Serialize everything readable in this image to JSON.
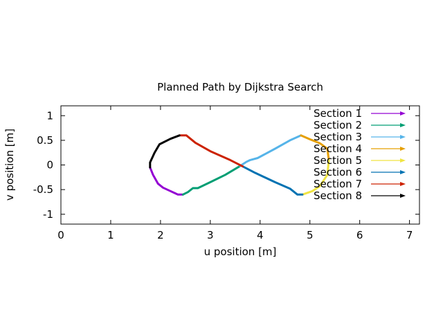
{
  "chart_data": {
    "type": "line",
    "title": "Planned Path by Dijkstra Search",
    "xlabel": "u position [m]",
    "ylabel": "v position [m]",
    "xlim": [
      0,
      7.2
    ],
    "ylim": [
      -1.2,
      1.2
    ],
    "xticks": [
      "0",
      "1",
      "2",
      "3",
      "4",
      "5",
      "6",
      "7"
    ],
    "xtick_values": [
      0,
      1,
      2,
      3,
      4,
      5,
      6,
      7
    ],
    "yticks": [
      "1",
      "0.5",
      "0",
      "-0.5",
      "-1"
    ],
    "ytick_values": [
      1,
      0.5,
      0,
      -0.5,
      -1
    ],
    "grid": false,
    "legend_position": "top-right",
    "series": [
      {
        "name": "Section 1",
        "color": "#9400d3",
        "points": [
          [
            1.79,
            -0.05
          ],
          [
            1.85,
            -0.2
          ],
          [
            1.95,
            -0.38
          ],
          [
            2.05,
            -0.46
          ],
          [
            2.2,
            -0.53
          ],
          [
            2.35,
            -0.6
          ],
          [
            2.45,
            -0.6
          ]
        ]
      },
      {
        "name": "Section 2",
        "color": "#009e73",
        "points": [
          [
            2.45,
            -0.6
          ],
          [
            2.55,
            -0.55
          ],
          [
            2.65,
            -0.47
          ],
          [
            2.75,
            -0.47
          ],
          [
            3.0,
            -0.35
          ],
          [
            3.3,
            -0.2
          ],
          [
            3.6,
            -0.02
          ]
        ]
      },
      {
        "name": "Section 3",
        "color": "#56b4e9",
        "points": [
          [
            3.6,
            -0.02
          ],
          [
            3.72,
            0.06
          ],
          [
            3.8,
            0.1
          ],
          [
            3.95,
            0.14
          ],
          [
            4.3,
            0.33
          ],
          [
            4.6,
            0.5
          ],
          [
            4.82,
            0.6
          ]
        ]
      },
      {
        "name": "Section 4",
        "color": "#e69f00",
        "points": [
          [
            4.82,
            0.6
          ],
          [
            5.0,
            0.52
          ],
          [
            5.2,
            0.44
          ],
          [
            5.35,
            0.33
          ],
          [
            5.38,
            0.1
          ]
        ]
      },
      {
        "name": "Section 5",
        "color": "#f0e442",
        "points": [
          [
            5.38,
            0.1
          ],
          [
            5.35,
            -0.2
          ],
          [
            5.2,
            -0.43
          ],
          [
            5.05,
            -0.53
          ],
          [
            4.85,
            -0.6
          ]
        ]
      },
      {
        "name": "Section 6",
        "color": "#0072b2",
        "points": [
          [
            4.85,
            -0.6
          ],
          [
            4.75,
            -0.6
          ],
          [
            4.6,
            -0.48
          ],
          [
            4.3,
            -0.35
          ],
          [
            3.9,
            -0.16
          ],
          [
            3.65,
            -0.03
          ]
        ]
      },
      {
        "name": "Section 7",
        "color": "#cc2200",
        "points": [
          [
            3.65,
            -0.03
          ],
          [
            3.4,
            0.1
          ],
          [
            3.0,
            0.28
          ],
          [
            2.7,
            0.45
          ],
          [
            2.52,
            0.6
          ],
          [
            2.38,
            0.6
          ]
        ]
      },
      {
        "name": "Section 8",
        "color": "#000000",
        "points": [
          [
            2.38,
            0.6
          ],
          [
            2.2,
            0.53
          ],
          [
            1.98,
            0.42
          ],
          [
            1.88,
            0.25
          ],
          [
            1.79,
            0.05
          ],
          [
            1.79,
            -0.05
          ]
        ]
      }
    ]
  }
}
